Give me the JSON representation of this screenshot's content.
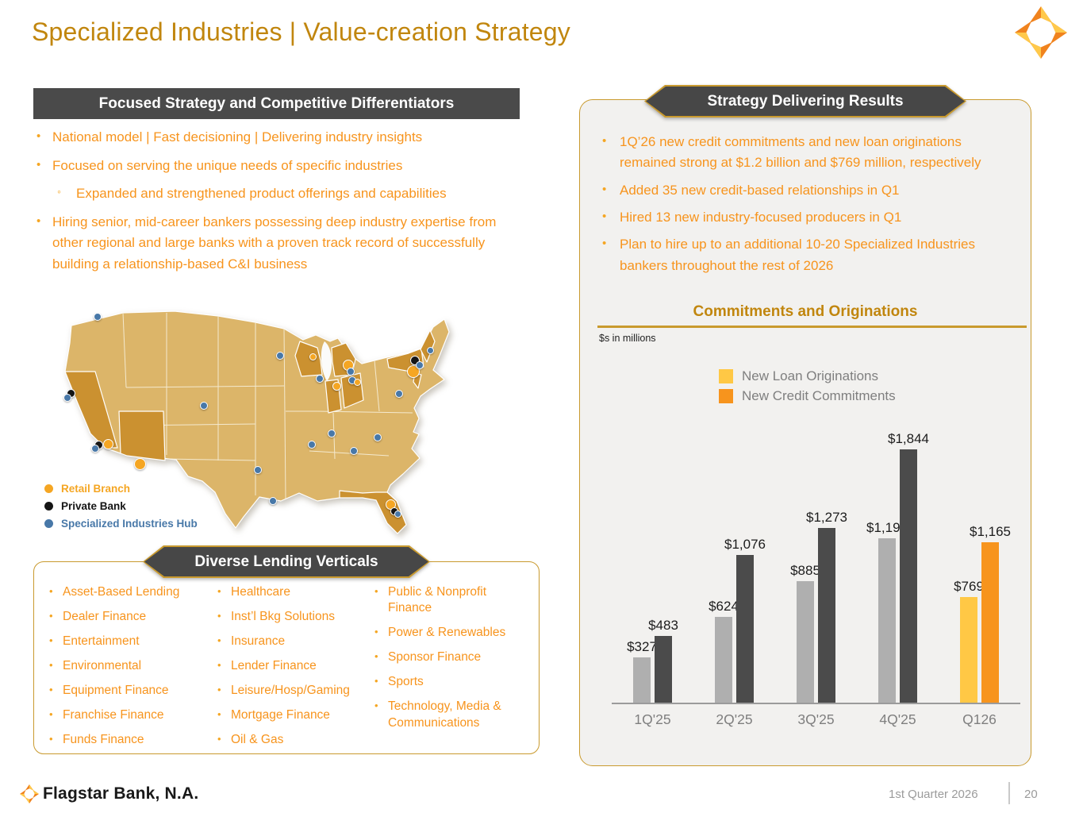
{
  "slide": {
    "title": "Specialized Industries | Value-creation Strategy",
    "footer_brand": "Flagstar Bank, N.A.",
    "footer_right": "1st Quarter 2026",
    "page_number": "20"
  },
  "left_panel": {
    "header": "Focused Strategy and Competitive Differentiators",
    "bullets": [
      {
        "level": 1,
        "text": "National model | Fast decisioning | Delivering industry insights"
      },
      {
        "level": 1,
        "text": "Focused on serving the unique needs of specific industries"
      },
      {
        "level": 2,
        "text": "Expanded and strengthened product offerings and capabilities"
      },
      {
        "level": 1,
        "text": "Hiring senior, mid-career bankers possessing deep industry expertise from other regional and large banks with a proven track record of successfully building a relationship-based C&I business"
      }
    ]
  },
  "map": {
    "colors": {
      "retail": "#F5A623",
      "private": "#151515",
      "hub": "#4878A8"
    },
    "legend": [
      {
        "label": "Retail Branch",
        "color": "#F5A623"
      },
      {
        "label": "Private Bank",
        "color": "#151515"
      },
      {
        "label": "Specialized Industries Hub",
        "color": "#4878A8"
      }
    ],
    "markers": [
      {
        "type": "hub",
        "x": 63,
        "y": 31,
        "d": 10
      },
      {
        "type": "private",
        "x": 29,
        "y": 127,
        "d": 11
      },
      {
        "type": "hub",
        "x": 25,
        "y": 133,
        "d": 10
      },
      {
        "type": "retail",
        "x": 76,
        "y": 191,
        "d": 13
      },
      {
        "type": "private",
        "x": 64,
        "y": 192,
        "d": 11
      },
      {
        "type": "hub",
        "x": 60,
        "y": 197,
        "d": 10
      },
      {
        "type": "retail",
        "x": 116,
        "y": 216,
        "d": 15
      },
      {
        "type": "hub",
        "x": 197,
        "y": 143,
        "d": 10
      },
      {
        "type": "hub",
        "x": 293,
        "y": 80,
        "d": 10
      },
      {
        "type": "retail",
        "x": 334,
        "y": 81,
        "d": 9
      },
      {
        "type": "hub",
        "x": 343,
        "y": 109,
        "d": 10
      },
      {
        "type": "retail",
        "x": 379,
        "y": 92,
        "d": 14
      },
      {
        "type": "hub",
        "x": 382,
        "y": 100,
        "d": 10
      },
      {
        "type": "retail",
        "x": 364,
        "y": 118,
        "d": 11
      },
      {
        "type": "hub",
        "x": 384,
        "y": 111,
        "d": 10
      },
      {
        "type": "retail",
        "x": 390,
        "y": 113,
        "d": 9
      },
      {
        "type": "retail",
        "x": 461,
        "y": 100,
        "d": 16
      },
      {
        "type": "private",
        "x": 463,
        "y": 86,
        "d": 12
      },
      {
        "type": "hub",
        "x": 469,
        "y": 92,
        "d": 10
      },
      {
        "type": "hub",
        "x": 482,
        "y": 73,
        "d": 9
      },
      {
        "type": "hub",
        "x": 443,
        "y": 128,
        "d": 10
      },
      {
        "type": "hub",
        "x": 358,
        "y": 178,
        "d": 10
      },
      {
        "type": "hub",
        "x": 333,
        "y": 192,
        "d": 10
      },
      {
        "type": "hub",
        "x": 386,
        "y": 200,
        "d": 10
      },
      {
        "type": "hub",
        "x": 416,
        "y": 183,
        "d": 10
      },
      {
        "type": "hub",
        "x": 265,
        "y": 224,
        "d": 10
      },
      {
        "type": "hub",
        "x": 284,
        "y": 263,
        "d": 10
      },
      {
        "type": "retail",
        "x": 432,
        "y": 267,
        "d": 13
      },
      {
        "type": "private",
        "x": 437,
        "y": 276,
        "d": 10
      },
      {
        "type": "hub",
        "x": 441,
        "y": 279,
        "d": 9
      }
    ]
  },
  "verticals": {
    "header": "Diverse Lending Verticals",
    "columns": [
      [
        "Asset-Based Lending",
        "Dealer Finance",
        "Entertainment",
        "Environmental",
        "Equipment Finance",
        "Franchise Finance",
        "Funds Finance"
      ],
      [
        "Healthcare",
        "Inst’l Bkg Solutions",
        "Insurance",
        "Lender Finance",
        "Leisure/Hosp/Gaming",
        "Mortgage Finance",
        "Oil & Gas"
      ],
      [
        "Public & Nonprofit Finance",
        "Power & Renewables",
        "Sponsor Finance",
        "Sports",
        "Technology, Media & Communications"
      ]
    ]
  },
  "results": {
    "header": "Strategy Delivering Results",
    "bullets": [
      "1Q’26 new credit commitments and new loan originations remained strong at $1.2 billion and $769 million, respectively",
      "Added 35 new credit-based relationships in Q1",
      "Hired 13 new industry-focused producers in Q1",
      "Plan to hire up to an additional 10-20 Specialized Industries bankers throughout the rest of 2026"
    ]
  },
  "chart_data": {
    "type": "bar",
    "title": "Commitments and Originations",
    "units_note": "$s in millions",
    "categories": [
      "1Q'25",
      "2Q'25",
      "3Q'25",
      "4Q'25",
      "Q126"
    ],
    "series": [
      {
        "name": "New Loan Originations",
        "legend_color": "#FFC845",
        "values": [
          327,
          624,
          885,
          1195,
          769
        ],
        "colors": [
          "#AFAFAF",
          "#AFAFAF",
          "#AFAFAF",
          "#AFAFAF",
          "#FFC845"
        ]
      },
      {
        "name": "New Credit Commitments",
        "legend_color": "#F7941D",
        "values": [
          483,
          1076,
          1273,
          1844,
          1165
        ],
        "colors": [
          "#4B4B4B",
          "#4B4B4B",
          "#4B4B4B",
          "#4B4B4B",
          "#F7941D"
        ]
      }
    ],
    "ylim": [
      0,
      1900
    ],
    "legend_position": "top-center",
    "value_labels": true,
    "grid": false
  }
}
